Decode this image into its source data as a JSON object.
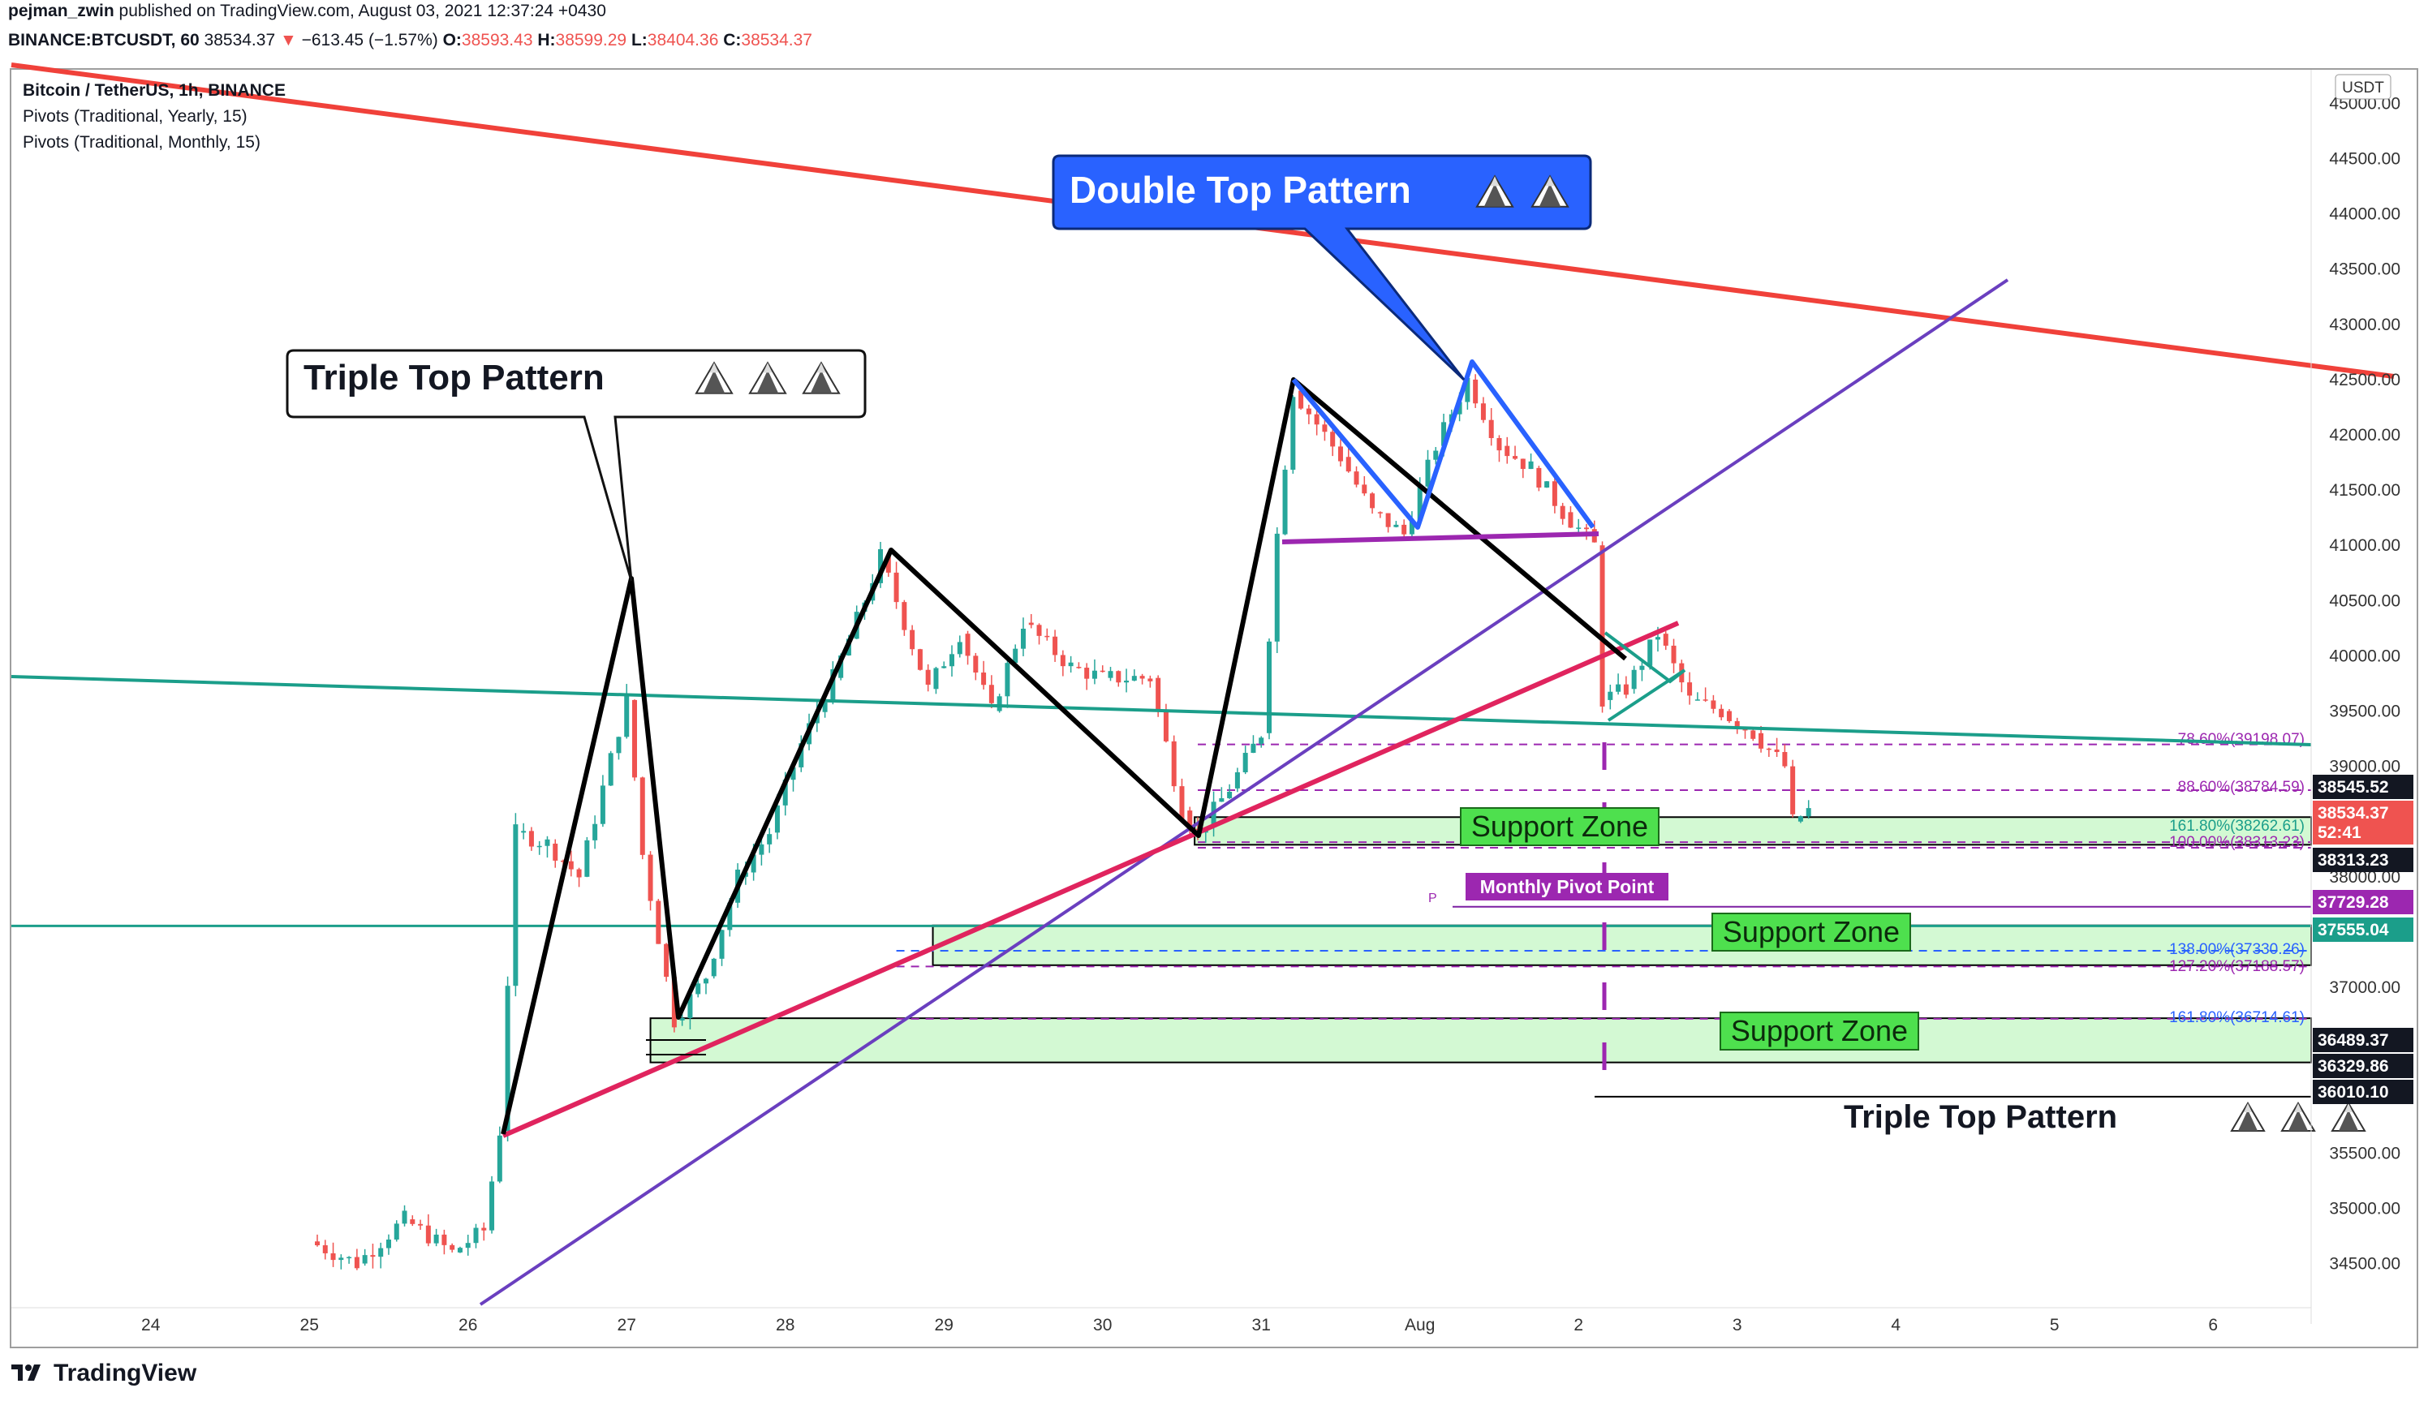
{
  "header": {
    "author": "pejman_zwin",
    "published_text": "published on TradingView.com, August 03, 2021 12:37:24 +0430",
    "symbol_line": "BINANCE:BTCUSDT, 60",
    "last": "38534.37",
    "change_arrow": "▼",
    "change": "−613.45 (−1.57%)",
    "o_label": "O:",
    "o": "38593.43",
    "h_label": "H:",
    "h": "38599.29",
    "l_label": "L:",
    "l": "38404.36",
    "c_label": "C:",
    "c": "38534.37"
  },
  "legend": {
    "title": "Bitcoin / TetherUS, 1h, BINANCE",
    "ind1": "Pivots (Traditional, Yearly, 15)",
    "ind2": "Pivots (Traditional, Monthly, 15)"
  },
  "currency_badge": "USDT",
  "footer": {
    "brand": "TradingView",
    "logo_icon": "tradingview-logo-icon"
  },
  "colors": {
    "up": "#26a69a",
    "down": "#ef5350",
    "teal_line": "#1b9e8a",
    "red_trend": "#f0413a",
    "pink_trend": "#e0245e",
    "purple_trend": "#6a3fbf",
    "fib": "#9c27b0",
    "zone_fill": "#c8f7c8",
    "callout_blue": "#2962ff"
  },
  "annotations": {
    "double_top": "Double Top Pattern",
    "triple_top_callout": "Triple Top Pattern",
    "triple_top_label": "Triple Top Pattern",
    "support_zone_1": "Support Zone",
    "support_zone_2": "Support Zone",
    "support_zone_3": "Support Zone",
    "monthly_pivot": "Monthly Pivot Point",
    "pivot_marker": "P",
    "mountain_icon": "mountain-icon"
  },
  "chart_data": {
    "type": "candlestick",
    "title": "Bitcoin / TetherUS, 1h, BINANCE",
    "x_ticks": [
      "24",
      "25",
      "26",
      "27",
      "28",
      "29",
      "30",
      "31",
      "Aug",
      "2",
      "3",
      "4",
      "5",
      "6"
    ],
    "y_ticks": [
      "34500.00",
      "35000.00",
      "35500.00",
      "36000.00",
      "36500.00",
      "37000.00",
      "37500.00",
      "38000.00",
      "38500.00",
      "39000.00",
      "39500.00",
      "40000.00",
      "40500.00",
      "41000.00",
      "41500.00",
      "42000.00",
      "42500.00",
      "43000.00",
      "43500.00",
      "44000.00",
      "44500.00",
      "45000.00"
    ],
    "ylim": [
      34100,
      45300
    ],
    "price_path": [
      [
        25.0,
        34700
      ],
      [
        25.3,
        34500
      ],
      [
        25.6,
        34900
      ],
      [
        25.9,
        34600
      ],
      [
        26.1,
        34800
      ],
      [
        26.2,
        35700
      ],
      [
        26.3,
        38400
      ],
      [
        26.5,
        38300
      ],
      [
        26.7,
        38000
      ],
      [
        27.0,
        39600
      ],
      [
        27.1,
        38200
      ],
      [
        27.3,
        36700
      ],
      [
        27.5,
        37100
      ],
      [
        27.7,
        38000
      ],
      [
        27.9,
        38400
      ],
      [
        28.1,
        39200
      ],
      [
        28.3,
        39800
      ],
      [
        28.5,
        40500
      ],
      [
        28.6,
        40900
      ],
      [
        28.9,
        39700
      ],
      [
        29.1,
        40200
      ],
      [
        29.3,
        39500
      ],
      [
        29.5,
        40300
      ],
      [
        29.8,
        39900
      ],
      [
        30.0,
        39800
      ],
      [
        30.3,
        39800
      ],
      [
        30.5,
        38600
      ],
      [
        30.6,
        38400
      ],
      [
        30.8,
        38800
      ],
      [
        31.0,
        39300
      ],
      [
        31.1,
        41100
      ],
      [
        31.2,
        42400
      ],
      [
        31.5,
        41800
      ],
      [
        31.7,
        41300
      ],
      [
        31.9,
        41100
      ],
      [
        32.1,
        41900
      ],
      [
        32.3,
        42500
      ],
      [
        32.5,
        41900
      ],
      [
        32.7,
        41700
      ],
      [
        32.9,
        41300
      ],
      [
        33.1,
        41000
      ],
      [
        33.15,
        39600
      ],
      [
        33.3,
        39700
      ],
      [
        33.5,
        40200
      ],
      [
        33.7,
        39600
      ],
      [
        33.9,
        39500
      ],
      [
        34.1,
        39300
      ],
      [
        34.3,
        39000
      ],
      [
        34.35,
        38500
      ],
      [
        34.45,
        38600
      ]
    ],
    "levels": [
      {
        "label": "78.60%(39198.07)",
        "price": 39198.07,
        "kind": "fib"
      },
      {
        "label": "88.60%(38784.59)",
        "price": 38784.59,
        "kind": "fib"
      },
      {
        "label": "161.80%(38262.61)",
        "price": 38262.61,
        "kind": "fib"
      },
      {
        "label": "100.00%(38313.23)",
        "price": 38313.23,
        "kind": "fib"
      },
      {
        "label": "138.00%(37330.26)",
        "price": 37330.26,
        "kind": "fib"
      },
      {
        "label": "127.20%(37188.57)",
        "price": 37188.57,
        "kind": "fib"
      },
      {
        "label": "161.80%(36714.61)",
        "price": 36714.61,
        "kind": "fib"
      }
    ],
    "price_labels": [
      {
        "text": "38545.52",
        "style": "dark"
      },
      {
        "text": "38534.37",
        "style": "red"
      },
      {
        "text": "52:41",
        "style": "red"
      },
      {
        "text": "38313.23",
        "style": "dark"
      },
      {
        "text": "37729.28",
        "style": "purple"
      },
      {
        "text": "37555.04",
        "style": "teal"
      },
      {
        "text": "36489.37",
        "style": "dark"
      },
      {
        "text": "36329.86",
        "style": "dark"
      },
      {
        "text": "36010.10",
        "style": "dark"
      }
    ]
  }
}
